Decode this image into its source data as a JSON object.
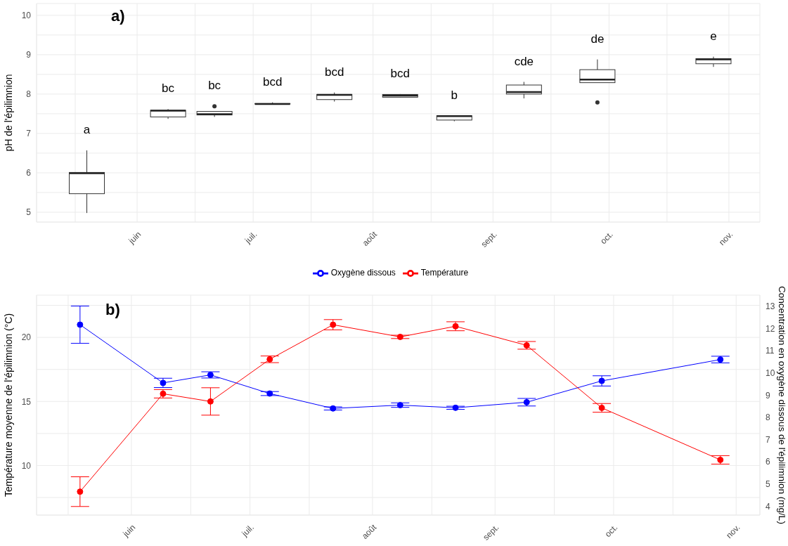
{
  "chart_data": [
    {
      "type": "box",
      "ylabel": "pH de l'épilimnion",
      "grid": true,
      "x": [
        "--05-19",
        "--06-09",
        "--06-21",
        "--07-06",
        "--07-22",
        "--08-08",
        "--08-22",
        "--09-09",
        "--09-28",
        "--10-28"
      ],
      "boxes": [
        {
          "low": 4.98,
          "q1": 5.47,
          "median": 5.99,
          "q3": 6.01,
          "high": 6.57
        },
        {
          "low": 7.37,
          "q1": 7.42,
          "median": 7.58,
          "q3": 7.59,
          "high": 7.62
        },
        {
          "low": 7.42,
          "q1": 7.47,
          "median": 7.49,
          "q3": 7.56,
          "high": 7.56,
          "outliers": [
            7.69
          ]
        },
        {
          "low": 7.74,
          "q1": 7.75,
          "median": 7.75,
          "q3": 7.76,
          "high": 7.79
        },
        {
          "low": 7.81,
          "q1": 7.86,
          "median": 7.98,
          "q3": 7.99,
          "high": 8.04
        },
        {
          "low": 7.91,
          "q1": 7.92,
          "median": 7.96,
          "q3": 7.99,
          "high": 8.0
        },
        {
          "low": 7.31,
          "q1": 7.34,
          "median": 7.44,
          "q3": 7.45,
          "high": 7.45
        },
        {
          "low": 7.89,
          "q1": 8.0,
          "median": 8.05,
          "q3": 8.23,
          "high": 8.31
        },
        {
          "low": 8.29,
          "q1": 8.29,
          "median": 8.37,
          "q3": 8.62,
          "high": 8.88,
          "outliers": [
            7.79
          ]
        },
        {
          "low": 8.69,
          "q1": 8.77,
          "median": 8.88,
          "q3": 8.9,
          "high": 8.95
        }
      ],
      "xlim": [
        "--05-06",
        "--11-09"
      ],
      "xticks": [
        {
          "value": "--05-16",
          "label": null
        },
        {
          "value": "--06-01",
          "label": "juin"
        },
        {
          "value": "--06-16",
          "label": null
        },
        {
          "value": "--07-01",
          "label": "juil."
        },
        {
          "value": "--07-16",
          "label": null
        },
        {
          "value": "--08-01",
          "label": "août"
        },
        {
          "value": "--08-16",
          "label": null
        },
        {
          "value": "--09-01",
          "label": "sept."
        },
        {
          "value": "--09-16",
          "label": null
        },
        {
          "value": "--10-01",
          "label": "oct."
        },
        {
          "value": "--10-16",
          "label": null
        },
        {
          "value": "--11-01",
          "label": "nov."
        }
      ],
      "ylim": [
        4.75,
        10.3
      ],
      "yticks": [
        5,
        {
          "value": 5.5,
          "label": null
        },
        6,
        {
          "value": 6.5,
          "label": null
        },
        7,
        {
          "value": 7.5,
          "label": null
        },
        8,
        {
          "value": 8.5,
          "label": null
        },
        9,
        {
          "value": 9.5,
          "label": null
        },
        10
      ],
      "annotations": [
        "a)",
        "a",
        "bc",
        "bc",
        "bcd",
        "bcd",
        "bcd",
        "b",
        "cde",
        "de",
        "e"
      ]
    },
    {
      "type": "line",
      "ylabel": "Température moyenne de l'épilimnion (°C)",
      "y2label": "Concentration en oxygène dissous de l'épilimnion (mg/L)",
      "grid": true,
      "legend": "top",
      "marker": "circle",
      "x": [
        "--05-19",
        "--06-09",
        "--06-21",
        "--07-06",
        "--07-22",
        "--08-08",
        "--08-22",
        "--09-09",
        "--09-28",
        "--10-28"
      ],
      "series": [
        {
          "name": "Oxygène dissous",
          "color": "#0000ff",
          "axis": "y2",
          "values": [
            12.17,
            9.55,
            9.91,
            9.07,
            8.4,
            8.55,
            8.43,
            8.68,
            9.64,
            10.6
          ],
          "errors": [
            0.84,
            0.21,
            0.14,
            0.09,
            0.07,
            0.1,
            0.07,
            0.17,
            0.23,
            0.15
          ]
        },
        {
          "name": "Température",
          "color": "#ff0000",
          "values": [
            7.96,
            15.6,
            15.0,
            18.29,
            20.99,
            20.04,
            20.87,
            19.38,
            14.5,
            10.44
          ],
          "errors": [
            1.16,
            0.33,
            1.07,
            0.26,
            0.4,
            0.13,
            0.35,
            0.3,
            0.34,
            0.33
          ]
        }
      ],
      "xlim": [
        "--05-08",
        "--11-07"
      ],
      "xticks": [
        {
          "value": "--05-16",
          "label": null
        },
        {
          "value": "--06-01",
          "label": "juin"
        },
        {
          "value": "--06-16",
          "label": null
        },
        {
          "value": "--07-01",
          "label": "juil."
        },
        {
          "value": "--07-16",
          "label": null
        },
        {
          "value": "--08-01",
          "label": "août"
        },
        {
          "value": "--08-16",
          "label": null
        },
        {
          "value": "--09-01",
          "label": "sept."
        },
        {
          "value": "--09-16",
          "label": null
        },
        {
          "value": "--10-01",
          "label": "oct."
        },
        {
          "value": "--10-16",
          "label": null
        },
        {
          "value": "--11-01",
          "label": "nov."
        }
      ],
      "ylim": [
        6.13,
        23.3
      ],
      "yticks": [
        {
          "value": 7.5,
          "label": null
        },
        10,
        {
          "value": 12.5,
          "label": null
        },
        15,
        {
          "value": 17.5,
          "label": null
        },
        20,
        {
          "value": 22.5,
          "label": null
        }
      ],
      "y2lim": [
        3.6,
        13.5
      ],
      "y2ticks": [
        4,
        5,
        6,
        7,
        8,
        9,
        10,
        11,
        12,
        13
      ],
      "annotations": [
        "b)"
      ]
    }
  ]
}
